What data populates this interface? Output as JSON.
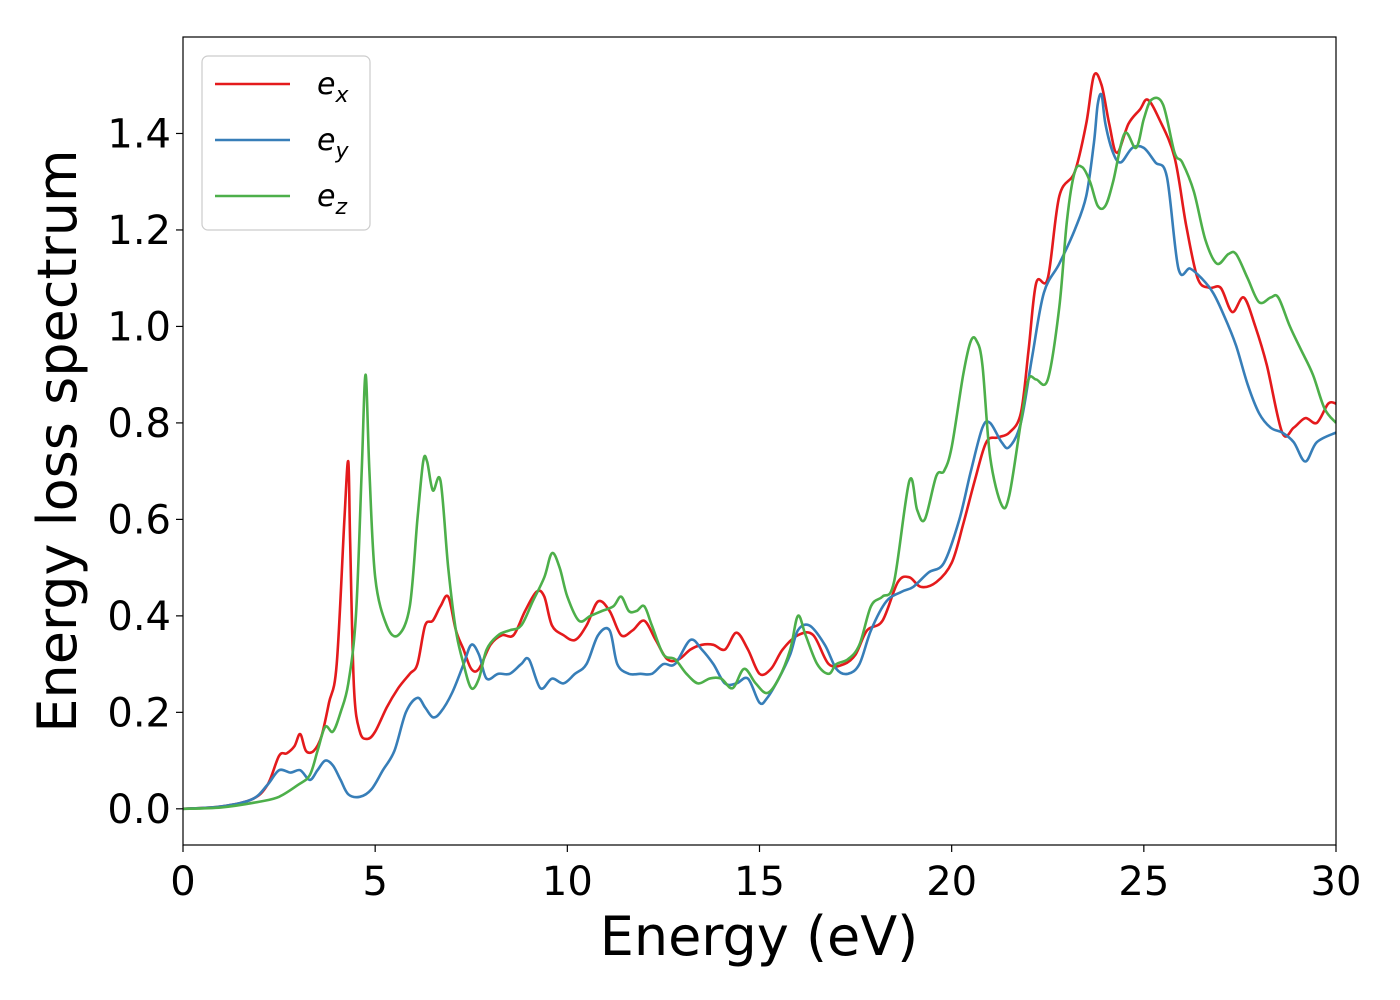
{
  "chart_data": {
    "type": "line",
    "title": "",
    "xlabel": "Energy (eV)",
    "ylabel": "Energy loss spectrum",
    "xlim": [
      0,
      30
    ],
    "ylim": [
      -0.075,
      1.6
    ],
    "xticks": [
      0,
      5,
      10,
      15,
      20,
      25,
      30
    ],
    "xtick_labels": [
      "0",
      "5",
      "10",
      "15",
      "20",
      "25",
      "30"
    ],
    "yticks": [
      0.0,
      0.2,
      0.4,
      0.6,
      0.8,
      1.0,
      1.2,
      1.4
    ],
    "ytick_labels": [
      "0.0",
      "0.2",
      "0.4",
      "0.6",
      "0.8",
      "1.0",
      "1.2",
      "1.4"
    ],
    "grid": false,
    "legend_position": "top-left",
    "series": [
      {
        "name": "e",
        "subscript": "x",
        "color": "#e41a1c",
        "x": [
          0,
          1,
          1.8,
          2.2,
          2.5,
          2.7,
          2.9,
          3.05,
          3.2,
          3.4,
          3.6,
          3.8,
          4.0,
          4.2,
          4.3,
          4.35,
          4.45,
          4.6,
          4.8,
          5.0,
          5.3,
          5.6,
          5.9,
          6.1,
          6.3,
          6.5,
          6.7,
          6.9,
          7.1,
          7.3,
          7.5,
          7.7,
          8.0,
          8.3,
          8.6,
          8.9,
          9.2,
          9.4,
          9.6,
          9.9,
          10.2,
          10.5,
          10.8,
          11.1,
          11.4,
          11.7,
          12.0,
          12.3,
          12.6,
          12.9,
          13.2,
          13.5,
          13.8,
          14.1,
          14.4,
          14.7,
          15.0,
          15.3,
          15.6,
          16.0,
          16.4,
          16.8,
          17.2,
          17.5,
          17.8,
          18.2,
          18.6,
          18.9,
          19.2,
          19.6,
          20.0,
          20.3,
          20.6,
          20.9,
          21.2,
          21.5,
          21.8,
          22.0,
          22.2,
          22.5,
          22.8,
          23.2,
          23.5,
          23.7,
          23.9,
          24.1,
          24.3,
          24.6,
          24.9,
          25.1,
          25.4,
          25.8,
          26.1,
          26.4,
          26.7,
          27.0,
          27.3,
          27.6,
          27.9,
          28.2,
          28.6,
          28.9,
          29.2,
          29.5,
          29.8,
          30.0
        ],
        "y": [
          0.0,
          0.005,
          0.02,
          0.05,
          0.11,
          0.115,
          0.13,
          0.155,
          0.12,
          0.12,
          0.15,
          0.22,
          0.3,
          0.6,
          0.72,
          0.55,
          0.25,
          0.16,
          0.145,
          0.16,
          0.21,
          0.25,
          0.28,
          0.3,
          0.38,
          0.39,
          0.42,
          0.44,
          0.37,
          0.33,
          0.29,
          0.29,
          0.34,
          0.36,
          0.36,
          0.41,
          0.45,
          0.44,
          0.38,
          0.36,
          0.35,
          0.38,
          0.43,
          0.41,
          0.36,
          0.37,
          0.39,
          0.35,
          0.31,
          0.31,
          0.33,
          0.34,
          0.34,
          0.33,
          0.365,
          0.33,
          0.28,
          0.29,
          0.33,
          0.36,
          0.36,
          0.3,
          0.3,
          0.32,
          0.37,
          0.39,
          0.47,
          0.48,
          0.46,
          0.47,
          0.51,
          0.59,
          0.68,
          0.76,
          0.77,
          0.78,
          0.82,
          0.95,
          1.09,
          1.1,
          1.27,
          1.32,
          1.42,
          1.52,
          1.5,
          1.42,
          1.36,
          1.42,
          1.45,
          1.47,
          1.43,
          1.35,
          1.21,
          1.1,
          1.08,
          1.08,
          1.03,
          1.06,
          1.0,
          0.92,
          0.78,
          0.79,
          0.81,
          0.8,
          0.84,
          0.84
        ]
      },
      {
        "name": "e",
        "subscript": "y",
        "color": "#377eb8",
        "x": [
          0,
          1,
          1.8,
          2.2,
          2.5,
          2.8,
          3.05,
          3.3,
          3.5,
          3.7,
          3.9,
          4.1,
          4.3,
          4.6,
          4.9,
          5.2,
          5.5,
          5.8,
          6.1,
          6.3,
          6.5,
          6.7,
          7.0,
          7.3,
          7.5,
          7.7,
          7.9,
          8.2,
          8.5,
          8.8,
          9.0,
          9.3,
          9.6,
          9.9,
          10.2,
          10.5,
          10.8,
          11.1,
          11.3,
          11.6,
          11.9,
          12.2,
          12.5,
          12.8,
          13.2,
          13.5,
          13.8,
          14.1,
          14.4,
          14.7,
          15.0,
          15.2,
          15.5,
          15.8,
          16.0,
          16.3,
          16.7,
          17.0,
          17.3,
          17.6,
          17.9,
          18.3,
          18.7,
          19.0,
          19.4,
          19.8,
          20.2,
          20.5,
          20.8,
          21.0,
          21.3,
          21.5,
          21.8,
          22.1,
          22.4,
          22.8,
          23.2,
          23.5,
          23.7,
          23.8,
          23.9,
          24.0,
          24.2,
          24.4,
          24.7,
          25.0,
          25.3,
          25.6,
          25.9,
          26.2,
          26.5,
          26.8,
          27.1,
          27.4,
          27.7,
          28.0,
          28.3,
          28.6,
          28.9,
          29.2,
          29.5,
          30.0
        ],
        "y": [
          0.0,
          0.005,
          0.02,
          0.05,
          0.08,
          0.075,
          0.08,
          0.06,
          0.08,
          0.1,
          0.09,
          0.06,
          0.03,
          0.025,
          0.04,
          0.08,
          0.12,
          0.2,
          0.23,
          0.21,
          0.19,
          0.2,
          0.24,
          0.3,
          0.34,
          0.32,
          0.27,
          0.28,
          0.28,
          0.3,
          0.31,
          0.25,
          0.27,
          0.26,
          0.28,
          0.3,
          0.36,
          0.37,
          0.3,
          0.28,
          0.28,
          0.28,
          0.3,
          0.3,
          0.35,
          0.33,
          0.3,
          0.26,
          0.26,
          0.27,
          0.22,
          0.23,
          0.27,
          0.32,
          0.37,
          0.38,
          0.34,
          0.29,
          0.28,
          0.3,
          0.37,
          0.43,
          0.45,
          0.46,
          0.49,
          0.51,
          0.6,
          0.7,
          0.79,
          0.8,
          0.76,
          0.75,
          0.8,
          0.94,
          1.07,
          1.13,
          1.2,
          1.27,
          1.38,
          1.46,
          1.48,
          1.42,
          1.36,
          1.34,
          1.37,
          1.37,
          1.34,
          1.31,
          1.12,
          1.12,
          1.1,
          1.07,
          1.02,
          0.96,
          0.88,
          0.82,
          0.79,
          0.78,
          0.76,
          0.72,
          0.76,
          0.78
        ]
      },
      {
        "name": "e",
        "subscript": "z",
        "color": "#4daf4a",
        "x": [
          0,
          1,
          2.0,
          2.5,
          3.0,
          3.3,
          3.5,
          3.7,
          3.9,
          4.1,
          4.3,
          4.5,
          4.65,
          4.75,
          4.85,
          5.0,
          5.3,
          5.6,
          5.9,
          6.1,
          6.25,
          6.35,
          6.5,
          6.7,
          6.9,
          7.1,
          7.3,
          7.5,
          7.7,
          7.9,
          8.2,
          8.5,
          8.8,
          9.1,
          9.4,
          9.6,
          9.8,
          10.0,
          10.3,
          10.6,
          10.9,
          11.2,
          11.4,
          11.6,
          11.8,
          12.0,
          12.2,
          12.5,
          12.8,
          13.1,
          13.4,
          13.7,
          14.0,
          14.3,
          14.6,
          14.9,
          15.2,
          15.5,
          15.8,
          16.0,
          16.2,
          16.5,
          16.8,
          17.0,
          17.3,
          17.6,
          17.9,
          18.2,
          18.5,
          18.9,
          19.1,
          19.3,
          19.6,
          19.8,
          20.0,
          20.3,
          20.5,
          20.65,
          20.8,
          21.0,
          21.3,
          21.5,
          21.8,
          22.0,
          22.2,
          22.5,
          22.8,
          23.0,
          23.2,
          23.4,
          23.6,
          23.8,
          24.0,
          24.2,
          24.5,
          24.8,
          25.0,
          25.2,
          25.5,
          25.8,
          26.0,
          26.3,
          26.6,
          26.9,
          27.2,
          27.4,
          27.7,
          28.0,
          28.3,
          28.5,
          28.8,
          29.1,
          29.4,
          29.7,
          30.0
        ],
        "y": [
          0.0,
          0.003,
          0.015,
          0.025,
          0.05,
          0.07,
          0.12,
          0.17,
          0.16,
          0.2,
          0.26,
          0.4,
          0.7,
          0.9,
          0.7,
          0.48,
          0.38,
          0.36,
          0.42,
          0.6,
          0.72,
          0.72,
          0.66,
          0.68,
          0.5,
          0.37,
          0.3,
          0.25,
          0.27,
          0.33,
          0.36,
          0.37,
          0.38,
          0.43,
          0.48,
          0.53,
          0.5,
          0.44,
          0.39,
          0.4,
          0.41,
          0.42,
          0.44,
          0.41,
          0.41,
          0.42,
          0.38,
          0.32,
          0.31,
          0.28,
          0.26,
          0.27,
          0.27,
          0.25,
          0.29,
          0.26,
          0.24,
          0.27,
          0.33,
          0.4,
          0.36,
          0.3,
          0.28,
          0.3,
          0.31,
          0.34,
          0.42,
          0.44,
          0.47,
          0.68,
          0.62,
          0.6,
          0.69,
          0.7,
          0.75,
          0.9,
          0.97,
          0.97,
          0.92,
          0.73,
          0.63,
          0.65,
          0.8,
          0.89,
          0.89,
          0.89,
          1.04,
          1.22,
          1.32,
          1.33,
          1.3,
          1.25,
          1.25,
          1.3,
          1.4,
          1.37,
          1.43,
          1.47,
          1.46,
          1.36,
          1.34,
          1.28,
          1.18,
          1.13,
          1.15,
          1.15,
          1.1,
          1.05,
          1.06,
          1.06,
          1.0,
          0.95,
          0.9,
          0.83,
          0.8
        ]
      }
    ]
  }
}
